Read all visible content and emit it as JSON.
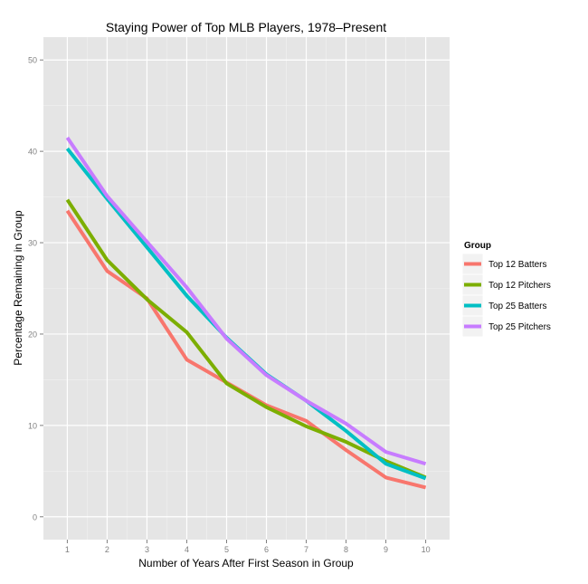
{
  "chart_data": {
    "type": "line",
    "title": "Staying Power of Top MLB Players, 1978–Present",
    "xlabel": "Number of Years After First Season in Group",
    "ylabel": "Percentage Remaining in Group",
    "x": [
      1,
      2,
      3,
      4,
      5,
      6,
      7,
      8,
      9,
      10
    ],
    "xlim": [
      0.4,
      10.6
    ],
    "ylim": [
      -2.5,
      52.5
    ],
    "yticks": [
      0,
      10,
      20,
      30,
      40,
      50
    ],
    "grid": true,
    "legend_title": "Group",
    "legend_position": "right",
    "series": [
      {
        "name": "Top 12 Batters",
        "color": "#F8766D",
        "values": [
          33.5,
          26.9,
          23.9,
          17.2,
          14.7,
          12.2,
          10.5,
          7.3,
          4.3,
          3.2
        ]
      },
      {
        "name": "Top 12 Pitchers",
        "color": "#7CAE00",
        "values": [
          34.7,
          28.1,
          23.8,
          20.2,
          14.6,
          12.0,
          9.9,
          8.2,
          6.1,
          4.3
        ]
      },
      {
        "name": "Top 25 Batters",
        "color": "#00BFC4",
        "values": [
          40.3,
          34.8,
          29.5,
          24.2,
          19.6,
          15.6,
          12.7,
          9.4,
          5.8,
          4.2
        ]
      },
      {
        "name": "Top 25 Pitchers",
        "color": "#C77CFF",
        "values": [
          41.5,
          35.1,
          30.1,
          25.1,
          19.5,
          15.5,
          12.7,
          10.2,
          7.1,
          5.8
        ]
      }
    ]
  }
}
